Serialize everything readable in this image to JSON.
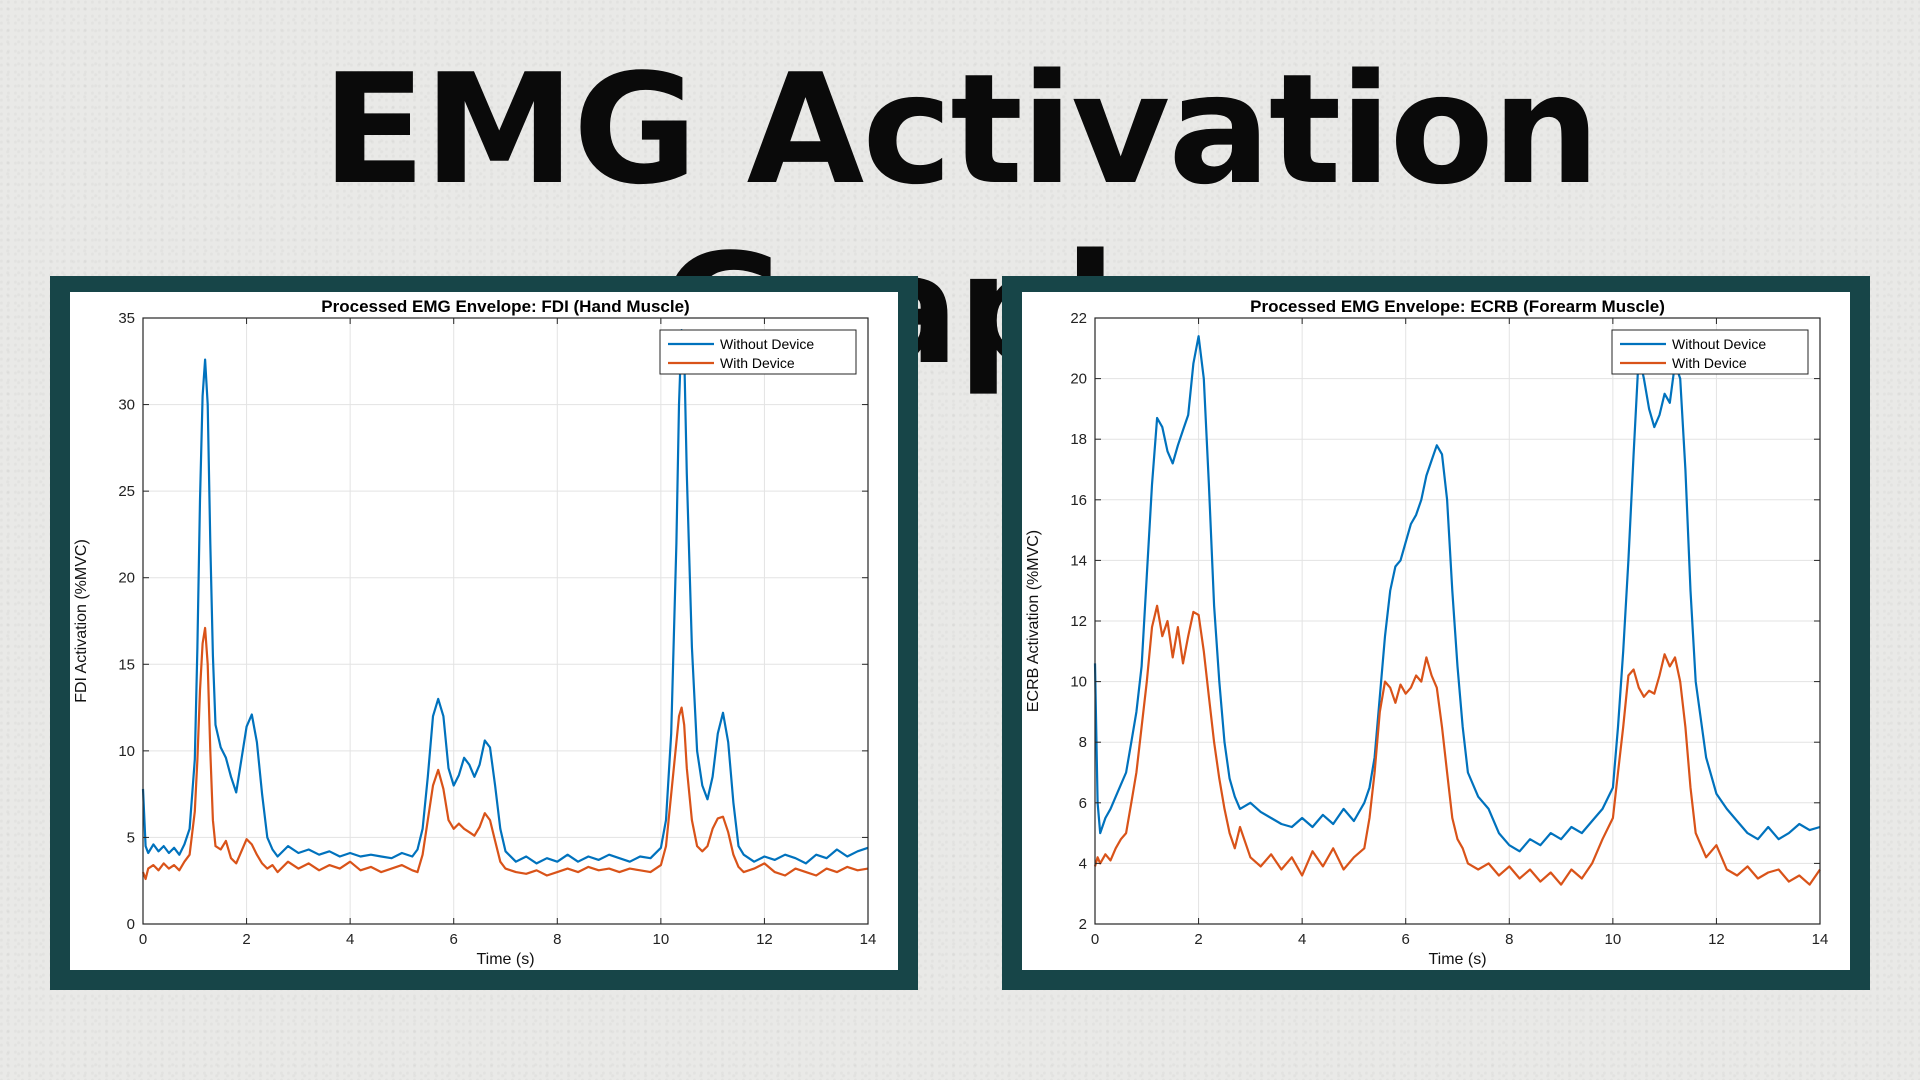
{
  "page": {
    "title": "EMG Activation Graphs"
  },
  "colors": {
    "without": "#0072bd",
    "with": "#d95319",
    "frame": "#174548"
  },
  "chart_data": [
    {
      "type": "line",
      "title": "Processed EMG Envelope: FDI (Hand Muscle)",
      "xlabel": "Time (s)",
      "ylabel": "FDI Activation (%MVC)",
      "xlim": [
        0,
        14
      ],
      "ylim": [
        0,
        35
      ],
      "xticks": [
        0,
        2,
        4,
        6,
        8,
        10,
        12,
        14
      ],
      "yticks": [
        0,
        5,
        10,
        15,
        20,
        25,
        30,
        35
      ],
      "grid": true,
      "legend_position": "top-right",
      "series": [
        {
          "name": "Without Device",
          "color": "#0072bd",
          "x": [
            0,
            0.05,
            0.1,
            0.2,
            0.3,
            0.4,
            0.5,
            0.6,
            0.7,
            0.8,
            0.9,
            1.0,
            1.05,
            1.1,
            1.15,
            1.2,
            1.25,
            1.3,
            1.35,
            1.4,
            1.5,
            1.6,
            1.7,
            1.8,
            1.9,
            2.0,
            2.1,
            2.2,
            2.3,
            2.4,
            2.5,
            2.6,
            2.8,
            3.0,
            3.2,
            3.4,
            3.6,
            3.8,
            4.0,
            4.2,
            4.4,
            4.6,
            4.8,
            5.0,
            5.2,
            5.3,
            5.4,
            5.5,
            5.6,
            5.7,
            5.8,
            5.9,
            6.0,
            6.1,
            6.2,
            6.3,
            6.4,
            6.5,
            6.6,
            6.7,
            6.8,
            6.9,
            7.0,
            7.2,
            7.4,
            7.6,
            7.8,
            8.0,
            8.2,
            8.4,
            8.6,
            8.8,
            9.0,
            9.2,
            9.4,
            9.6,
            9.8,
            10.0,
            10.1,
            10.2,
            10.3,
            10.35,
            10.4,
            10.45,
            10.5,
            10.6,
            10.7,
            10.8,
            10.9,
            11.0,
            11.1,
            11.2,
            11.3,
            11.4,
            11.5,
            11.6,
            11.8,
            12.0,
            12.2,
            12.4,
            12.6,
            12.8,
            13.0,
            13.2,
            13.4,
            13.6,
            13.8,
            14.0
          ],
          "values": [
            7.8,
            4.5,
            4.1,
            4.6,
            4.2,
            4.5,
            4.1,
            4.4,
            4.0,
            4.6,
            5.5,
            9.5,
            16.0,
            24.5,
            30.5,
            32.6,
            30.0,
            22.0,
            15.5,
            11.5,
            10.2,
            9.6,
            8.5,
            7.6,
            9.5,
            11.4,
            12.1,
            10.5,
            7.5,
            5.0,
            4.3,
            3.9,
            4.5,
            4.1,
            4.3,
            4.0,
            4.2,
            3.9,
            4.1,
            3.9,
            4.0,
            3.9,
            3.8,
            4.1,
            3.9,
            4.3,
            5.5,
            8.5,
            12.0,
            13.0,
            12.0,
            9.0,
            8.0,
            8.6,
            9.6,
            9.2,
            8.5,
            9.2,
            10.6,
            10.2,
            8.0,
            5.5,
            4.2,
            3.6,
            3.9,
            3.5,
            3.8,
            3.6,
            4.0,
            3.6,
            3.9,
            3.7,
            4.0,
            3.8,
            3.6,
            3.9,
            3.8,
            4.4,
            6.0,
            11.0,
            22.0,
            30.0,
            34.3,
            33.0,
            26.0,
            16.0,
            10.0,
            8.0,
            7.2,
            8.5,
            11.0,
            12.2,
            10.5,
            7.0,
            4.5,
            4.0,
            3.6,
            3.9,
            3.7,
            4.0,
            3.8,
            3.5,
            4.0,
            3.8,
            4.3,
            3.9,
            4.2,
            4.4
          ]
        },
        {
          "name": "With Device",
          "color": "#d95319",
          "x": [
            0,
            0.05,
            0.1,
            0.2,
            0.3,
            0.4,
            0.5,
            0.6,
            0.7,
            0.8,
            0.9,
            1.0,
            1.05,
            1.1,
            1.15,
            1.2,
            1.25,
            1.3,
            1.35,
            1.4,
            1.5,
            1.6,
            1.7,
            1.8,
            1.9,
            2.0,
            2.1,
            2.2,
            2.3,
            2.4,
            2.5,
            2.6,
            2.8,
            3.0,
            3.2,
            3.4,
            3.6,
            3.8,
            4.0,
            4.2,
            4.4,
            4.6,
            4.8,
            5.0,
            5.2,
            5.3,
            5.4,
            5.5,
            5.6,
            5.7,
            5.8,
            5.9,
            6.0,
            6.1,
            6.2,
            6.3,
            6.4,
            6.5,
            6.6,
            6.7,
            6.8,
            6.9,
            7.0,
            7.2,
            7.4,
            7.6,
            7.8,
            8.0,
            8.2,
            8.4,
            8.6,
            8.8,
            9.0,
            9.2,
            9.4,
            9.6,
            9.8,
            10.0,
            10.1,
            10.2,
            10.3,
            10.35,
            10.4,
            10.45,
            10.5,
            10.6,
            10.7,
            10.8,
            10.9,
            11.0,
            11.1,
            11.2,
            11.3,
            11.4,
            11.5,
            11.6,
            11.8,
            12.0,
            12.2,
            12.4,
            12.6,
            12.8,
            13.0,
            13.2,
            13.4,
            13.6,
            13.8,
            14.0
          ],
          "values": [
            3.0,
            2.6,
            3.2,
            3.4,
            3.1,
            3.5,
            3.2,
            3.4,
            3.1,
            3.6,
            4.0,
            6.5,
            9.5,
            13.5,
            16.2,
            17.1,
            15.0,
            10.0,
            6.0,
            4.5,
            4.3,
            4.8,
            3.8,
            3.5,
            4.2,
            4.9,
            4.6,
            4.0,
            3.5,
            3.2,
            3.4,
            3.0,
            3.6,
            3.2,
            3.5,
            3.1,
            3.4,
            3.2,
            3.6,
            3.1,
            3.3,
            3.0,
            3.2,
            3.4,
            3.1,
            3.0,
            4.0,
            6.0,
            8.0,
            8.9,
            7.8,
            6.0,
            5.5,
            5.8,
            5.5,
            5.3,
            5.1,
            5.6,
            6.4,
            6.0,
            4.8,
            3.6,
            3.2,
            3.0,
            2.9,
            3.1,
            2.8,
            3.0,
            3.2,
            3.0,
            3.3,
            3.1,
            3.2,
            3.0,
            3.2,
            3.1,
            3.0,
            3.4,
            4.5,
            7.5,
            10.5,
            12.0,
            12.5,
            11.5,
            9.0,
            6.0,
            4.5,
            4.2,
            4.5,
            5.5,
            6.1,
            6.2,
            5.3,
            4.0,
            3.3,
            3.0,
            3.2,
            3.5,
            3.0,
            2.8,
            3.2,
            3.0,
            2.8,
            3.2,
            3.0,
            3.3,
            3.1,
            3.2
          ]
        }
      ]
    },
    {
      "type": "line",
      "title": "Processed EMG Envelope: ECRB (Forearm Muscle)",
      "xlabel": "Time (s)",
      "ylabel": "ECRB Activation (%MVC)",
      "xlim": [
        0,
        14
      ],
      "ylim": [
        2,
        22
      ],
      "xticks": [
        0,
        2,
        4,
        6,
        8,
        10,
        12,
        14
      ],
      "yticks": [
        2,
        4,
        6,
        8,
        10,
        12,
        14,
        16,
        18,
        20,
        22
      ],
      "grid": true,
      "legend_position": "top-right",
      "series": [
        {
          "name": "Without Device",
          "color": "#0072bd",
          "x": [
            0,
            0.05,
            0.1,
            0.2,
            0.3,
            0.4,
            0.5,
            0.6,
            0.7,
            0.8,
            0.9,
            1.0,
            1.1,
            1.2,
            1.3,
            1.4,
            1.5,
            1.6,
            1.7,
            1.8,
            1.9,
            2.0,
            2.1,
            2.2,
            2.3,
            2.4,
            2.5,
            2.6,
            2.7,
            2.8,
            3.0,
            3.2,
            3.4,
            3.6,
            3.8,
            4.0,
            4.2,
            4.4,
            4.6,
            4.8,
            5.0,
            5.2,
            5.3,
            5.4,
            5.5,
            5.6,
            5.7,
            5.8,
            5.9,
            6.0,
            6.1,
            6.2,
            6.3,
            6.4,
            6.5,
            6.6,
            6.7,
            6.8,
            6.9,
            7.0,
            7.1,
            7.2,
            7.4,
            7.6,
            7.8,
            8.0,
            8.2,
            8.4,
            8.6,
            8.8,
            9.0,
            9.2,
            9.4,
            9.6,
            9.8,
            10.0,
            10.1,
            10.2,
            10.3,
            10.4,
            10.5,
            10.6,
            10.7,
            10.8,
            10.9,
            11.0,
            11.1,
            11.2,
            11.3,
            11.4,
            11.5,
            11.6,
            11.8,
            12.0,
            12.2,
            12.4,
            12.6,
            12.8,
            13.0,
            13.2,
            13.4,
            13.6,
            13.8,
            14.0
          ],
          "values": [
            10.6,
            6.0,
            5.0,
            5.5,
            5.8,
            6.2,
            6.6,
            7.0,
            8.0,
            9.0,
            10.5,
            13.5,
            16.5,
            18.7,
            18.4,
            17.6,
            17.2,
            17.8,
            18.3,
            18.8,
            20.5,
            21.4,
            20.0,
            16.5,
            12.5,
            10.0,
            8.0,
            6.8,
            6.2,
            5.8,
            6.0,
            5.7,
            5.5,
            5.3,
            5.2,
            5.5,
            5.2,
            5.6,
            5.3,
            5.8,
            5.4,
            6.0,
            6.5,
            7.5,
            9.5,
            11.5,
            13.0,
            13.8,
            14.0,
            14.6,
            15.2,
            15.5,
            16.0,
            16.8,
            17.3,
            17.8,
            17.5,
            16.0,
            13.0,
            10.5,
            8.5,
            7.0,
            6.2,
            5.8,
            5.0,
            4.6,
            4.4,
            4.8,
            4.6,
            5.0,
            4.8,
            5.2,
            5.0,
            5.4,
            5.8,
            6.5,
            8.5,
            11.0,
            14.0,
            17.5,
            20.8,
            20.0,
            19.0,
            18.4,
            18.8,
            19.5,
            19.2,
            20.5,
            20.0,
            17.0,
            13.0,
            10.0,
            7.5,
            6.3,
            5.8,
            5.4,
            5.0,
            4.8,
            5.2,
            4.8,
            5.0,
            5.3,
            5.1,
            5.2
          ]
        },
        {
          "name": "With Device",
          "color": "#d95319",
          "x": [
            0,
            0.05,
            0.1,
            0.2,
            0.3,
            0.4,
            0.5,
            0.6,
            0.7,
            0.8,
            0.9,
            1.0,
            1.1,
            1.2,
            1.3,
            1.4,
            1.5,
            1.6,
            1.7,
            1.8,
            1.9,
            2.0,
            2.1,
            2.2,
            2.3,
            2.4,
            2.5,
            2.6,
            2.7,
            2.8,
            3.0,
            3.2,
            3.4,
            3.6,
            3.8,
            4.0,
            4.2,
            4.4,
            4.6,
            4.8,
            5.0,
            5.2,
            5.3,
            5.4,
            5.5,
            5.6,
            5.7,
            5.8,
            5.9,
            6.0,
            6.1,
            6.2,
            6.3,
            6.4,
            6.5,
            6.6,
            6.7,
            6.8,
            6.9,
            7.0,
            7.1,
            7.2,
            7.4,
            7.6,
            7.8,
            8.0,
            8.2,
            8.4,
            8.6,
            8.8,
            9.0,
            9.2,
            9.4,
            9.6,
            9.8,
            10.0,
            10.1,
            10.2,
            10.3,
            10.4,
            10.5,
            10.6,
            10.7,
            10.8,
            10.9,
            11.0,
            11.1,
            11.2,
            11.3,
            11.4,
            11.5,
            11.6,
            11.8,
            12.0,
            12.2,
            12.4,
            12.6,
            12.8,
            13.0,
            13.2,
            13.4,
            13.6,
            13.8,
            14.0
          ],
          "values": [
            3.9,
            4.2,
            4.0,
            4.3,
            4.1,
            4.5,
            4.8,
            5.0,
            6.0,
            7.0,
            8.5,
            10.0,
            11.8,
            12.5,
            11.5,
            12.0,
            10.8,
            11.8,
            10.6,
            11.5,
            12.3,
            12.2,
            11.0,
            9.5,
            8.0,
            6.8,
            5.8,
            5.0,
            4.5,
            5.2,
            4.2,
            3.9,
            4.3,
            3.8,
            4.2,
            3.6,
            4.4,
            3.9,
            4.5,
            3.8,
            4.2,
            4.5,
            5.5,
            7.0,
            9.0,
            10.0,
            9.8,
            9.3,
            9.9,
            9.6,
            9.8,
            10.2,
            10.0,
            10.8,
            10.2,
            9.8,
            8.5,
            7.0,
            5.5,
            4.8,
            4.5,
            4.0,
            3.8,
            4.0,
            3.6,
            3.9,
            3.5,
            3.8,
            3.4,
            3.7,
            3.3,
            3.8,
            3.5,
            4.0,
            4.8,
            5.5,
            7.0,
            8.5,
            10.2,
            10.4,
            9.8,
            9.5,
            9.7,
            9.6,
            10.2,
            10.9,
            10.5,
            10.8,
            10.0,
            8.5,
            6.5,
            5.0,
            4.2,
            4.6,
            3.8,
            3.6,
            3.9,
            3.5,
            3.7,
            3.8,
            3.4,
            3.6,
            3.3,
            3.8
          ]
        }
      ]
    }
  ]
}
